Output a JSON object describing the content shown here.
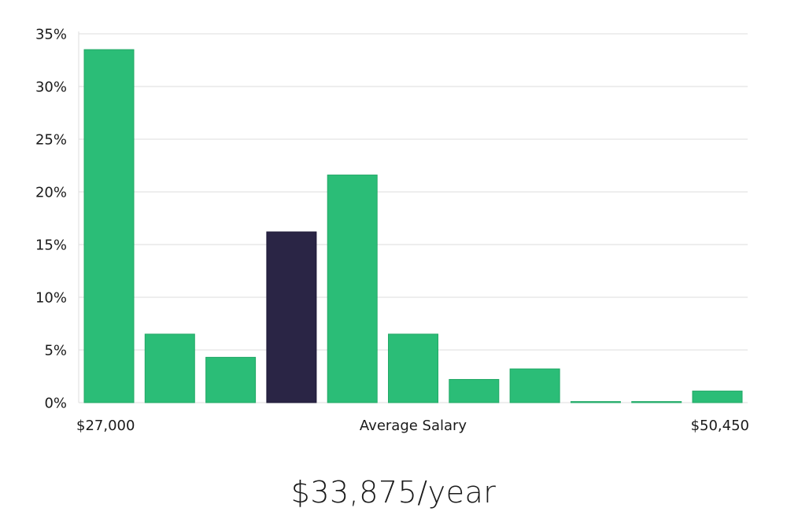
{
  "chart_data": {
    "type": "bar",
    "values": [
      33.5,
      6.5,
      4.3,
      16.2,
      21.6,
      6.5,
      2.2,
      3.2,
      0.1,
      0.1,
      1.1
    ],
    "highlight_index": 3,
    "ylim": [
      0,
      35
    ],
    "yticks": [
      "0%",
      "5%",
      "10%",
      "15%",
      "20%",
      "25%",
      "30%",
      "35%"
    ],
    "ytick_values": [
      0,
      5,
      10,
      15,
      20,
      25,
      30,
      35
    ],
    "x_min_label": "$27,000",
    "x_center_label": "Average Salary",
    "x_max_label": "$50,450",
    "grid": true,
    "colors": {
      "bar": "#2bbd77",
      "highlight": "#2a2545",
      "grid": "#dddddd"
    }
  },
  "salary_text": "$33,875/year"
}
